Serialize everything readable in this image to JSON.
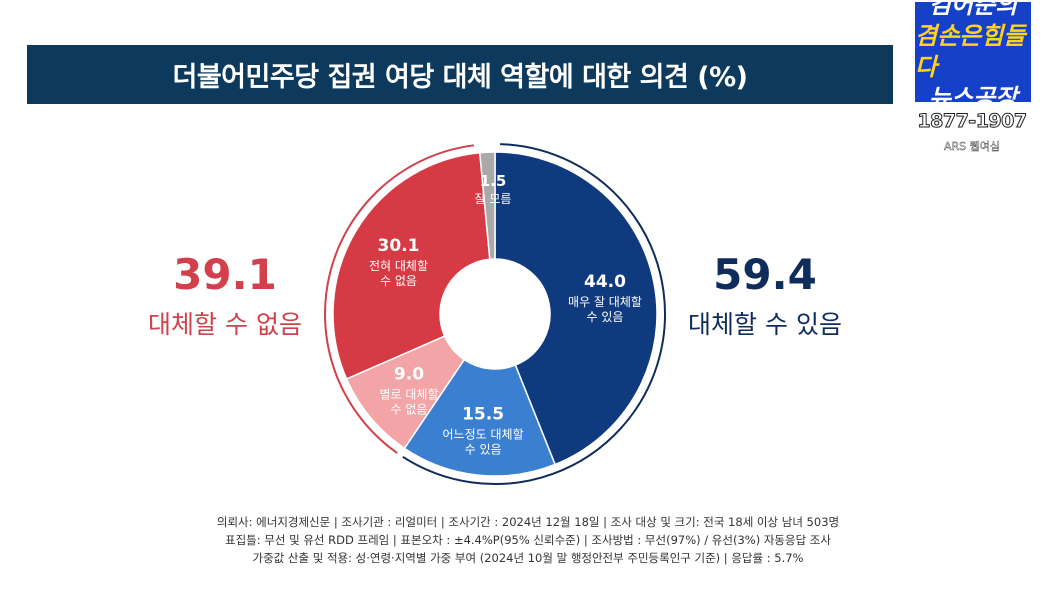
{
  "title": "더불어민주당 집권 여당 대체 역할에 대한 의견 (%)",
  "logo": {
    "line1": "김어준의",
    "line2a": "겸손은",
    "line2b": "힘들다",
    "line3": "뉴스공장"
  },
  "phone": "1877-1907",
  "ars": "ARS 웹여심",
  "left_group": {
    "value": "39.1",
    "label": "대체할 수 없음",
    "color": "#d2404b"
  },
  "right_group": {
    "value": "59.4",
    "label": "대체할 수 있음",
    "color": "#0e2d5c"
  },
  "chart_data": {
    "type": "pie",
    "donut": true,
    "slices": [
      {
        "label": "매우 잘 대체할 수 있음",
        "value": 44.0,
        "value_text": "44.0",
        "color": "#0f3b7e"
      },
      {
        "label": "어느정도 대체할 수 있음",
        "value": 15.5,
        "value_text": "15.5",
        "color": "#3a7fd0"
      },
      {
        "label": "별로 대체할 수 없음",
        "value": 9.0,
        "value_text": "9.0",
        "color": "#f2a4a6"
      },
      {
        "label": "전혀 대체할 수 없음",
        "value": 30.1,
        "value_text": "30.1",
        "color": "#d63a44"
      },
      {
        "label": "잘 모름",
        "value": 1.5,
        "value_text": "1.5",
        "color": "#a9a9a9"
      }
    ]
  },
  "footer": {
    "line1": "의뢰사: 에너지경제신문 | 조사기관 : 리얼미터 | 조사기간 : 2024년 12월 18일 | 조사 대상 및 크기: 전국 18세 이상 남녀 503명",
    "line2": "표집틀: 무선 및 유선 RDD 프레임 | 표본오차 : ±4.4%P(95% 신뢰수준) | 조사방법 : 무선(97%) / 유선(3%) 자동응답 조사",
    "line3": "가중값 산출 및 적용: 성·연령·지역별 가중 부여 (2024년 10월 말 행정안전부 주민등록인구 기준) | 응답률 : 5.7%"
  }
}
